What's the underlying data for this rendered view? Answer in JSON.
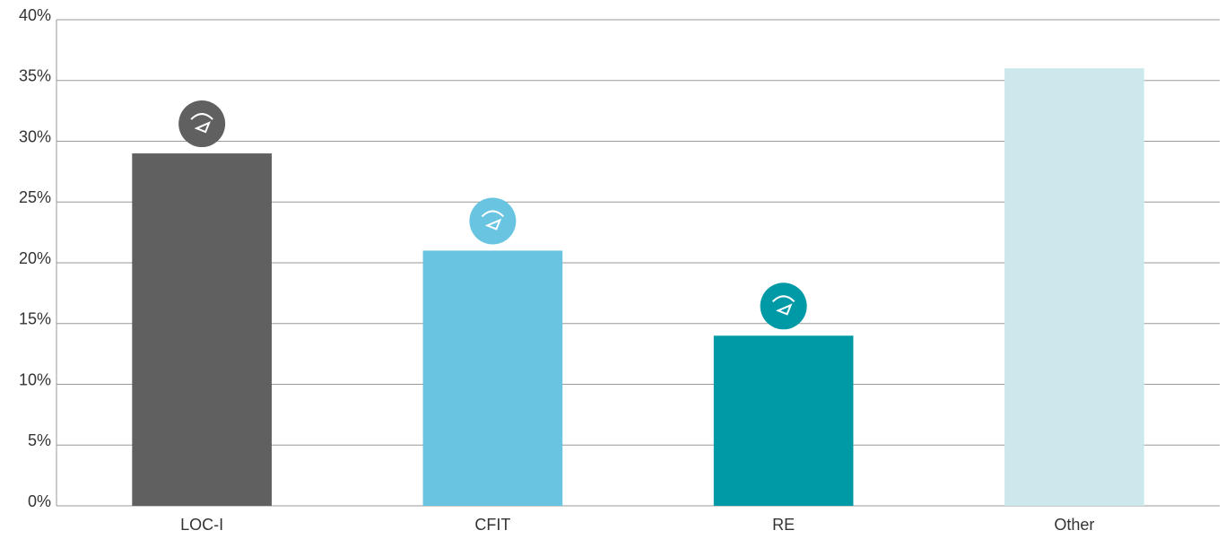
{
  "chart_data": {
    "type": "bar",
    "categories": [
      "LOC-I",
      "CFIT",
      "RE",
      "Other"
    ],
    "values": [
      29,
      21,
      14,
      36
    ],
    "colors": [
      "#606060",
      "#68c4e0",
      "#0099a6",
      "#cde8ec"
    ],
    "ylim": [
      0,
      40
    ],
    "yticks": [
      {
        "value": 0,
        "label": "0%"
      },
      {
        "value": 5,
        "label": "5%"
      },
      {
        "value": 10,
        "label": "10%"
      },
      {
        "value": 15,
        "label": "15%"
      },
      {
        "value": 20,
        "label": "20%"
      },
      {
        "value": 25,
        "label": "25%"
      },
      {
        "value": 30,
        "label": "30%"
      },
      {
        "value": 35,
        "label": "35%"
      },
      {
        "value": 40,
        "label": "40%"
      }
    ],
    "grid": true
  }
}
